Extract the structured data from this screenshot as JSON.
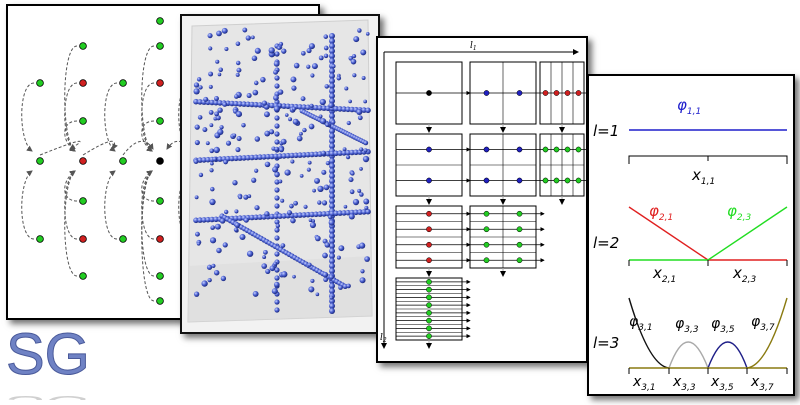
{
  "panel_basis": {
    "levels": [
      {
        "level_label": "l",
        "level_value": "=1",
        "functions": [
          {
            "symbol": "φ",
            "index": "1,1",
            "color": "#1f1fcc"
          }
        ],
        "grid_points": [
          {
            "symbol": "x",
            "index": "1,1"
          }
        ]
      },
      {
        "level_label": "l",
        "level_value": "=2",
        "functions": [
          {
            "symbol": "φ",
            "index": "2,1",
            "color": "#e02020"
          },
          {
            "symbol": "φ",
            "index": "2,3",
            "color": "#22dd22"
          }
        ],
        "grid_points": [
          {
            "symbol": "x",
            "index": "2,1"
          },
          {
            "symbol": "x",
            "index": "2,3"
          }
        ]
      },
      {
        "level_label": "l",
        "level_value": "=3",
        "functions": [
          {
            "symbol": "φ",
            "index": "3,1",
            "color": "#111111"
          },
          {
            "symbol": "φ",
            "index": "3,3",
            "color": "#aaaaaa"
          },
          {
            "symbol": "φ",
            "index": "3,5",
            "color": "#1f1f88"
          },
          {
            "symbol": "φ",
            "index": "3,7",
            "color": "#8a7a10"
          }
        ],
        "grid_points": [
          {
            "symbol": "x",
            "index": "3,1"
          },
          {
            "symbol": "x",
            "index": "3,3"
          },
          {
            "symbol": "x",
            "index": "3,5"
          },
          {
            "symbol": "x",
            "index": "3,7"
          }
        ]
      }
    ]
  },
  "panel_table": {
    "axis_top": {
      "symbol": "l",
      "index": "1"
    },
    "axis_left": {
      "symbol": "l",
      "index": "2"
    }
  },
  "logo": {
    "text": "SG",
    "color": "#6f82c4"
  },
  "colors": {
    "blue_dot": "#2020c0",
    "red_dot": "#d02020",
    "green_dot": "#22cc22",
    "sphere": "#4a5fd0"
  }
}
